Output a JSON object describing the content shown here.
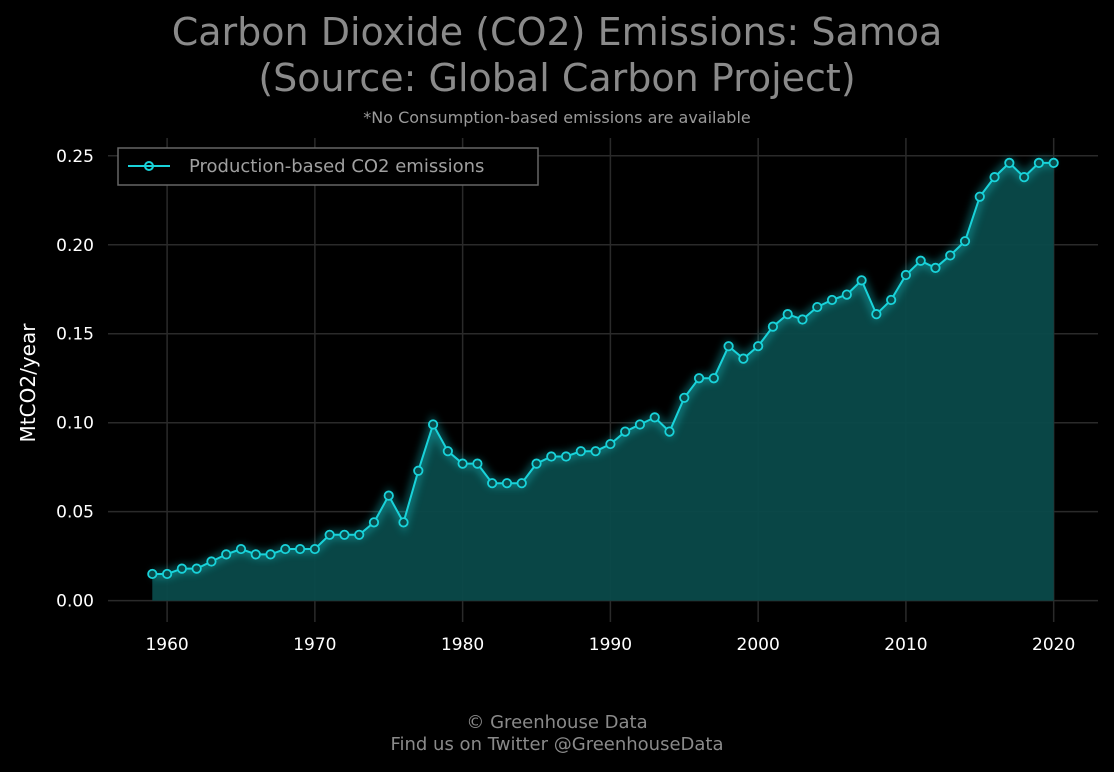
{
  "header": {
    "title_line1": "Carbon Dioxide (CO2) Emissions: Samoa",
    "title_line2": "(Source: Global Carbon Project)",
    "subtitle": "*No Consumption-based emissions are available"
  },
  "footer": {
    "line1": "© Greenhouse Data",
    "line2": "Find us on Twitter @GreenhouseData"
  },
  "colors": {
    "line": "#19d3da",
    "fill": "#0a4a4a",
    "grid": "#2a2a2a",
    "background": "#000000"
  },
  "chart_data": {
    "type": "area",
    "title": "Carbon Dioxide (CO2) Emissions: Samoa (Source: Global Carbon Project)",
    "subtitle": "*No Consumption-based emissions are available",
    "xlabel": "",
    "ylabel": "MtCO2/year",
    "xlim": [
      1956,
      2023
    ],
    "ylim": [
      -0.012,
      0.26
    ],
    "xticks": [
      1960,
      1970,
      1980,
      1990,
      2000,
      2010,
      2020
    ],
    "yticks": [
      0.0,
      0.05,
      0.1,
      0.15,
      0.2,
      0.25
    ],
    "ytick_labels": [
      "0.00",
      "0.05",
      "0.10",
      "0.15",
      "0.20",
      "0.25"
    ],
    "grid": true,
    "legend_position": "top-left",
    "series": [
      {
        "name": "Production-based CO2 emissions",
        "x": [
          1959,
          1960,
          1961,
          1962,
          1963,
          1964,
          1965,
          1966,
          1967,
          1968,
          1969,
          1970,
          1971,
          1972,
          1973,
          1974,
          1975,
          1976,
          1977,
          1978,
          1979,
          1980,
          1981,
          1982,
          1983,
          1984,
          1985,
          1986,
          1987,
          1988,
          1989,
          1990,
          1991,
          1992,
          1993,
          1994,
          1995,
          1996,
          1997,
          1998,
          1999,
          2000,
          2001,
          2002,
          2003,
          2004,
          2005,
          2006,
          2007,
          2008,
          2009,
          2010,
          2011,
          2012,
          2013,
          2014,
          2015,
          2016,
          2017,
          2018,
          2019,
          2020
        ],
        "y": [
          0.015,
          0.015,
          0.018,
          0.018,
          0.022,
          0.026,
          0.029,
          0.026,
          0.026,
          0.029,
          0.029,
          0.029,
          0.037,
          0.037,
          0.037,
          0.044,
          0.059,
          0.044,
          0.073,
          0.099,
          0.084,
          0.077,
          0.077,
          0.066,
          0.066,
          0.066,
          0.077,
          0.081,
          0.081,
          0.084,
          0.084,
          0.088,
          0.095,
          0.099,
          0.103,
          0.095,
          0.114,
          0.125,
          0.125,
          0.143,
          0.136,
          0.143,
          0.154,
          0.161,
          0.158,
          0.165,
          0.169,
          0.172,
          0.18,
          0.161,
          0.169,
          0.183,
          0.191,
          0.187,
          0.194,
          0.202,
          0.227,
          0.238,
          0.246,
          0.238,
          0.246,
          0.246
        ]
      }
    ]
  }
}
